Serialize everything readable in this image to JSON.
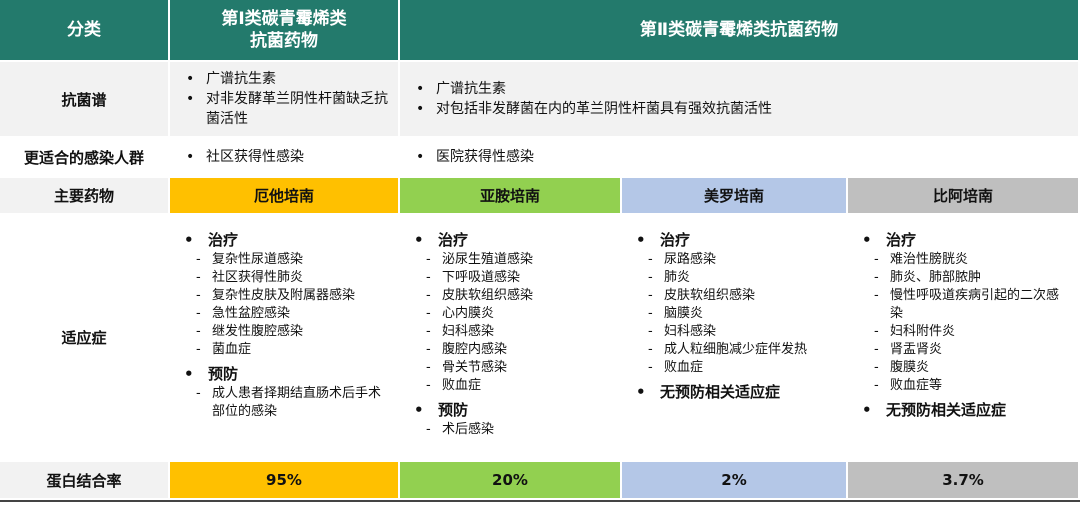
{
  "header": {
    "category": "分类",
    "class1": [
      "第Ⅰ类碳青霉烯类",
      "抗菌药物"
    ],
    "class2": "第Ⅱ类碳青霉烯类抗菌药物"
  },
  "rows": {
    "spectrum": {
      "label": "抗菌谱",
      "class1": [
        "广谱抗生素",
        "对非发酵革兰阴性杆菌缺乏抗菌活性"
      ],
      "class2": [
        "广谱抗生素",
        "对包括非发酵菌在内的革兰阴性杆菌具有强效抗菌活性"
      ]
    },
    "population": {
      "label": "更适合的感染人群",
      "class1": [
        "社区获得性感染"
      ],
      "class2": [
        "医院获得性感染"
      ]
    }
  },
  "drugs_label": "主要药物",
  "indications_label": "适应症",
  "protein_binding_label": "蛋白结合率",
  "drugs": [
    {
      "name": "厄他培南",
      "color": "#ffc000",
      "protein_binding": "95%",
      "indications": [
        {
          "heading": "治疗",
          "items": [
            "复杂性尿道感染",
            "社区获得性肺炎",
            "复杂性皮肤及附属器感染",
            "急性盆腔感染",
            "继发性腹腔感染",
            "菌血症"
          ]
        },
        {
          "heading": "预防",
          "items": [
            "成人患者择期结直肠术后手术部位的感染"
          ]
        }
      ]
    },
    {
      "name": "亚胺培南",
      "color": "#92d050",
      "protein_binding": "20%",
      "indications": [
        {
          "heading": "治疗",
          "items": [
            "泌尿生殖道感染",
            "下呼吸道感染",
            "皮肤软组织感染",
            "心内膜炎",
            "妇科感染",
            "腹腔内感染",
            "骨关节感染",
            "败血症"
          ]
        },
        {
          "heading": "预防",
          "items": [
            "术后感染"
          ]
        }
      ]
    },
    {
      "name": "美罗培南",
      "color": "#b4c7e7",
      "protein_binding": "2%",
      "indications": [
        {
          "heading": "治疗",
          "items": [
            "尿路感染",
            "肺炎",
            "皮肤软组织感染",
            "脑膜炎",
            "妇科感染",
            "成人粒细胞减少症伴发热",
            "败血症"
          ]
        },
        {
          "heading": "无预防相关适应症",
          "items": []
        }
      ]
    },
    {
      "name": "比阿培南",
      "color": "#bfbfbf",
      "protein_binding": "3.7%",
      "indications": [
        {
          "heading": "治疗",
          "items": [
            "难治性膀胱炎",
            "肺炎、肺部脓肿",
            "慢性呼吸道疾病引起的二次感染",
            "妇科附件炎",
            "肾盂肾炎",
            "腹膜炎",
            "败血症等"
          ]
        },
        {
          "heading": "无预防相关适应症",
          "items": []
        }
      ]
    }
  ]
}
